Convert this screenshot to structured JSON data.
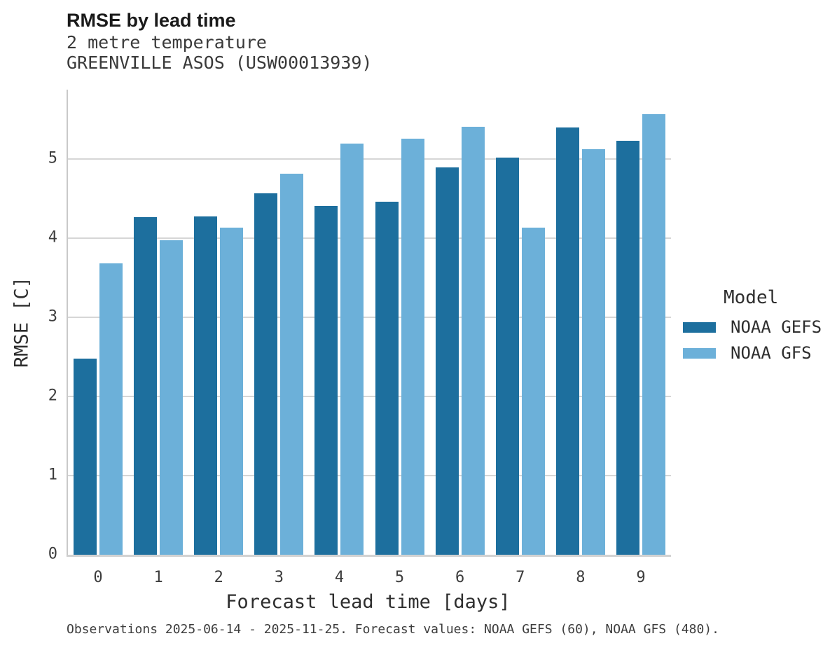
{
  "header": {
    "title": "RMSE by lead time",
    "subtitle_line1": "2 metre temperature",
    "subtitle_line2": "GREENVILLE ASOS (USW00013939)"
  },
  "chart_data": {
    "type": "bar",
    "title": "RMSE by lead time",
    "subtitle": [
      "2 metre temperature",
      "GREENVILLE ASOS (USW00013939)"
    ],
    "categories": [
      "0",
      "1",
      "2",
      "3",
      "4",
      "5",
      "6",
      "7",
      "8",
      "9"
    ],
    "series": [
      {
        "name": "NOAA GEFS",
        "color": "#1d6f9e",
        "values": [
          2.48,
          4.27,
          4.28,
          4.57,
          4.41,
          4.46,
          4.9,
          5.02,
          5.4,
          5.23
        ]
      },
      {
        "name": "NOAA GFS",
        "color": "#6cb0d9",
        "values": [
          3.68,
          3.98,
          4.14,
          4.82,
          5.2,
          5.26,
          5.41,
          4.14,
          5.13,
          5.57
        ]
      }
    ],
    "xlabel": "Forecast lead time [days]",
    "ylabel": "RMSE [C]",
    "ylim": [
      0,
      5.88
    ],
    "yticks": [
      0,
      1,
      2,
      3,
      4,
      5
    ],
    "grid": "horizontal-only",
    "legend_title": "Model",
    "legend_position": "right-center"
  },
  "legend": {
    "title": "Model",
    "items": [
      {
        "label": "NOAA GEFS",
        "color": "#1d6f9e"
      },
      {
        "label": "NOAA GFS",
        "color": "#6cb0d9"
      }
    ]
  },
  "colors": {
    "series_dark": "#1d6f9e",
    "series_light": "#6cb0d9",
    "gridline": "#d6d6d6",
    "axis_spine": "#c9c9c9",
    "baseline": "#d2d2d2",
    "title_text": "#1a1a1a",
    "body_text": "#3d3d3d"
  },
  "footnote": "Observations 2025-06-14 - 2025-11-25. Forecast values: NOAA GEFS (60), NOAA GFS (480)."
}
